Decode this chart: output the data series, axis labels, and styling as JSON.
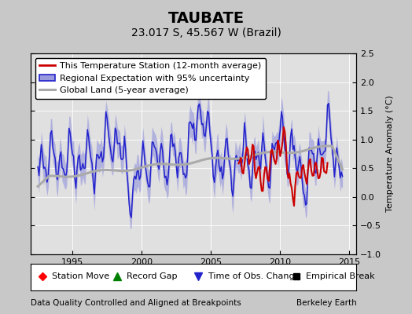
{
  "title": "TAUBATE",
  "subtitle": "23.017 S, 45.567 W (Brazil)",
  "ylabel": "Temperature Anomaly (°C)",
  "xlabel_note": "Data Quality Controlled and Aligned at Breakpoints",
  "source_note": "Berkeley Earth",
  "xlim": [
    1992.0,
    2015.5
  ],
  "ylim": [
    -1.0,
    2.5
  ],
  "yticks": [
    -1.0,
    -0.5,
    0.0,
    0.5,
    1.0,
    1.5,
    2.0,
    2.5
  ],
  "xticks": [
    1995,
    2000,
    2005,
    2010,
    2015
  ],
  "bg_color": "#c8c8c8",
  "plot_bg_color": "#e0e0e0",
  "regional_color": "#2222cc",
  "regional_fill_color": "#9999dd",
  "station_color": "#cc0000",
  "global_color": "#aaaaaa",
  "title_fontsize": 14,
  "subtitle_fontsize": 10,
  "legend_fontsize": 8.0,
  "axis_fontsize": 8,
  "note_fontsize": 7.5
}
